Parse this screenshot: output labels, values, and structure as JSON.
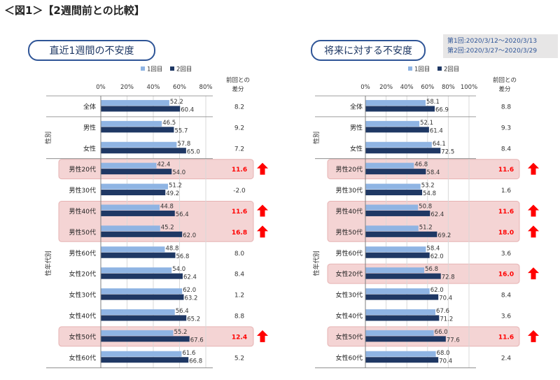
{
  "figure_title": "＜図1＞【2週間前との比較】",
  "legend": {
    "first": "1回目",
    "second": "2回目"
  },
  "colors": {
    "first": "#8fb4e3",
    "second": "#1f3864",
    "highlight": "#f4d4d4",
    "highlightBorder": "#e6b3b3",
    "up": "#ff0000",
    "diffHighlight": "#ff0000"
  },
  "dates": {
    "line1": "第1回:2020/3/12〜2020/3/13",
    "line2": "第2回:2020/3/27〜2020/3/29"
  },
  "diff_header": {
    "line1": "前回との",
    "line2": "差分"
  },
  "group_labels": {
    "sex": "性別",
    "sex_age": "性年代別"
  },
  "chart_data": [
    {
      "type": "bar",
      "title": "直近1週間の不安度",
      "xlim": [
        0,
        80
      ],
      "ticks": [
        "0%",
        "20%",
        "40%",
        "60%",
        "80%"
      ],
      "categories": [
        "全体",
        "男性",
        "女性",
        "男性20代",
        "男性30代",
        "男性40代",
        "男性50代",
        "男性60代",
        "女性20代",
        "女性30代",
        "女性40代",
        "女性50代",
        "女性60代"
      ],
      "series": [
        {
          "name": "1回目",
          "values": [
            52.2,
            46.5,
            57.8,
            42.4,
            51.2,
            44.8,
            45.2,
            48.8,
            54.0,
            62.0,
            56.4,
            55.2,
            61.6
          ]
        },
        {
          "name": "2回目",
          "values": [
            60.4,
            55.7,
            65.0,
            54.0,
            49.2,
            56.4,
            62.0,
            56.8,
            62.4,
            63.2,
            65.2,
            67.6,
            66.8
          ]
        }
      ],
      "value_labels_first": [
        "52.2",
        "46.5",
        "57.8",
        "42.4",
        "51.2",
        "44.8",
        "45.2",
        "48.8",
        "54.0",
        "62.0",
        "56.4",
        "55.2",
        "61.6"
      ],
      "value_labels_second": [
        "60.4",
        "55.7",
        "65.0",
        "54.0",
        "49.2",
        "56.4",
        "62.0",
        "56.8",
        "62.4",
        "63.2",
        "65.2",
        "67.6",
        "66.8"
      ],
      "diff": [
        "8.2",
        "9.2",
        "7.2",
        "11.6",
        "-2.0",
        "11.6",
        "16.8",
        "8.0",
        "8.4",
        "1.2",
        "8.8",
        "12.4",
        "5.2"
      ],
      "highlighted": [
        false,
        false,
        false,
        true,
        false,
        true,
        true,
        false,
        false,
        false,
        false,
        true,
        false
      ]
    },
    {
      "type": "bar",
      "title": "将来に対する不安度",
      "xlim": [
        0,
        100
      ],
      "ticks": [
        "0%",
        "20%",
        "40%",
        "60%",
        "80%",
        "100%"
      ],
      "categories": [
        "全体",
        "男性",
        "女性",
        "男性20代",
        "男性30代",
        "男性40代",
        "男性50代",
        "男性60代",
        "女性20代",
        "女性30代",
        "女性40代",
        "女性50代",
        "女性60代"
      ],
      "series": [
        {
          "name": "1回目",
          "values": [
            58.1,
            52.1,
            64.1,
            46.8,
            53.2,
            50.8,
            51.2,
            58.4,
            56.8,
            62.0,
            67.6,
            66.0,
            68.0
          ]
        },
        {
          "name": "2回目",
          "values": [
            66.9,
            61.4,
            72.5,
            58.4,
            54.8,
            62.4,
            69.2,
            62.0,
            72.8,
            70.4,
            71.2,
            77.6,
            70.4
          ]
        }
      ],
      "value_labels_first": [
        "58.1",
        "52.1",
        "64.1",
        "46.8",
        "53.2",
        "50.8",
        "51.2",
        "58.4",
        "56.8",
        "62.0",
        "67.6",
        "66.0",
        "68.0"
      ],
      "value_labels_second": [
        "66.9",
        "61.4",
        "72.5",
        "58.4",
        "54.8",
        "62.4",
        "69.2",
        "62.0",
        "72.8",
        "70.4",
        "71.2",
        "77.6",
        "70.4"
      ],
      "diff": [
        "8.8",
        "9.3",
        "8.4",
        "11.6",
        "1.6",
        "11.6",
        "18.0",
        "3.6",
        "16.0",
        "8.4",
        "3.6",
        "11.6",
        "2.4"
      ],
      "highlighted": [
        false,
        false,
        false,
        true,
        false,
        true,
        true,
        false,
        true,
        false,
        false,
        true,
        false
      ]
    }
  ]
}
